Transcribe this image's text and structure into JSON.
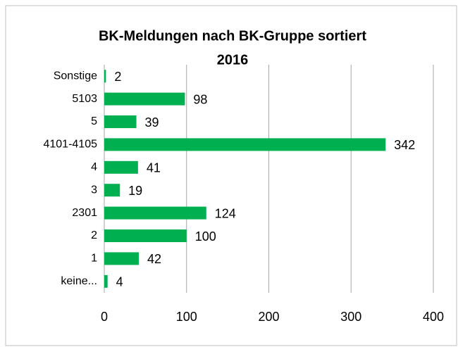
{
  "chart_data": {
    "type": "bar",
    "orientation": "horizontal",
    "title": "BK-Meldungen nach BK-Gruppe sortiert",
    "subtitle": "2016",
    "categories": [
      "Sonstige",
      "5103",
      "5",
      "4101-4105",
      "4",
      "3",
      "2301",
      "2",
      "1",
      "keine..."
    ],
    "values": [
      2,
      98,
      39,
      342,
      41,
      19,
      124,
      100,
      42,
      4
    ],
    "color": "#00b050",
    "xlim": [
      0,
      400
    ],
    "xticks": [
      0,
      100,
      200,
      300,
      400
    ],
    "grid": true
  }
}
